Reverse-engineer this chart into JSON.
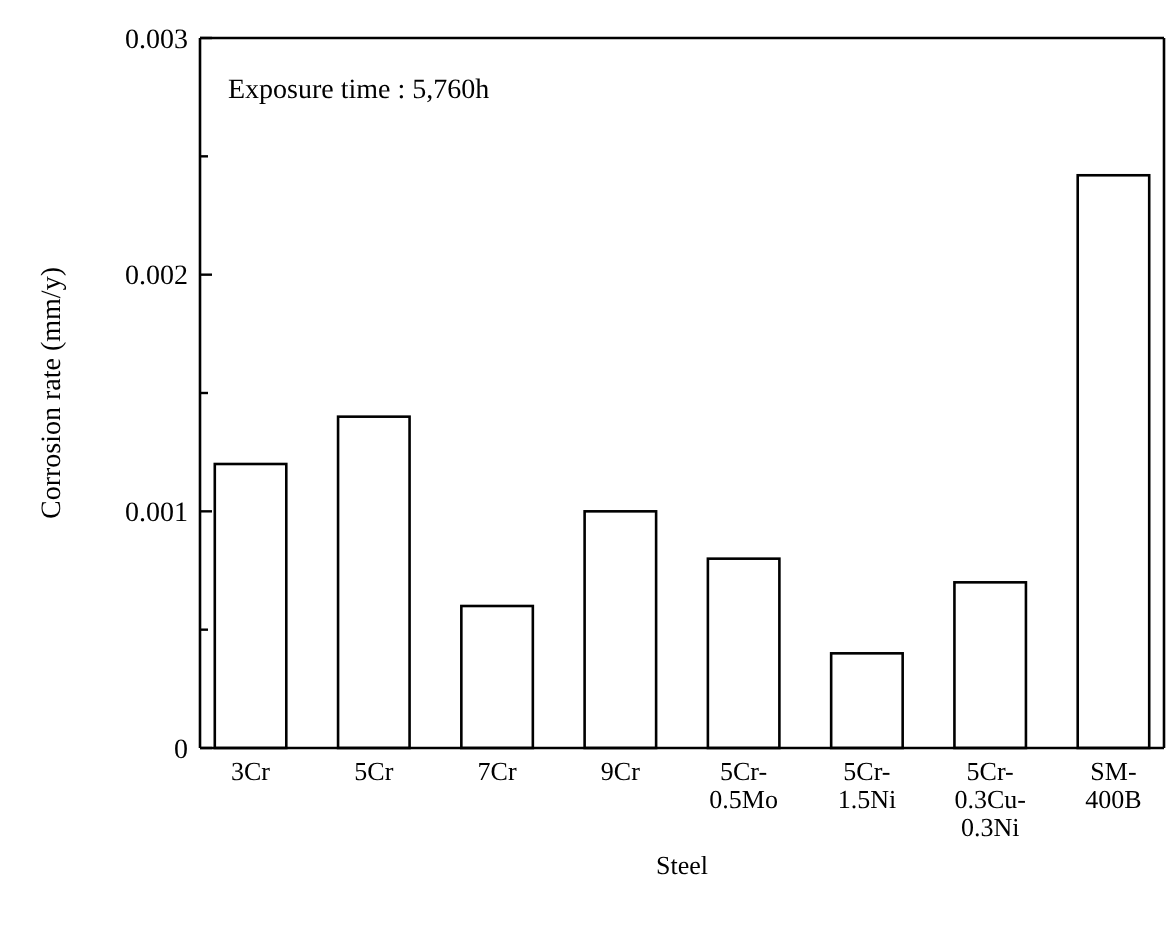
{
  "chart_data": {
    "type": "bar",
    "xlabel": "Steel",
    "ylabel": "Corrosion rate (mm/y)",
    "annotations": [
      "Exposure time : 5,760h"
    ],
    "categories": [
      "3Cr",
      "5Cr",
      "7Cr",
      "9Cr",
      "5Cr-0.5Mo",
      "5Cr-1.5Ni",
      "5Cr-0.3Cu-0.3Ni",
      "SM-400B"
    ],
    "values": [
      0.0012,
      0.0014,
      0.0006,
      0.001,
      0.0008,
      0.0004,
      0.0007,
      0.00242
    ],
    "color": "#ffffff",
    "ylim": [
      0,
      0.003
    ],
    "yticks": [
      0,
      {
        "value": 0.0005,
        "label": null
      },
      0.001,
      {
        "value": 0.0015,
        "label": null
      },
      0.002,
      {
        "value": 0.0025,
        "label": null
      },
      0.003
    ],
    "grid": false
  }
}
